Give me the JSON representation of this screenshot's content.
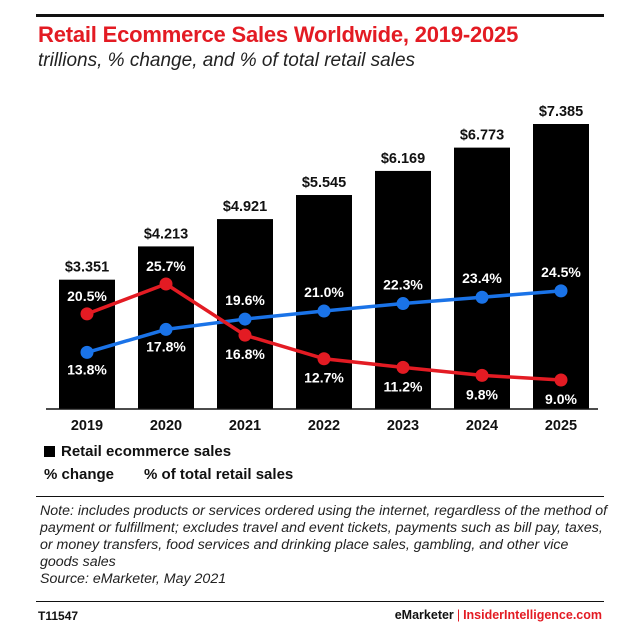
{
  "header": {
    "title": "Retail Ecommerce Sales Worldwide, 2019-2025",
    "subtitle": "trillions, % change, and % of total retail sales"
  },
  "chart_data": {
    "type": "bar",
    "categories": [
      "2019",
      "2020",
      "2021",
      "2022",
      "2023",
      "2024",
      "2025"
    ],
    "series": [
      {
        "name": "Retail ecommerce sales",
        "type": "bar",
        "values": [
          3.351,
          4.213,
          4.921,
          5.545,
          6.169,
          6.773,
          7.385
        ],
        "labels": [
          "$3.351",
          "$4.213",
          "$4.921",
          "$5.545",
          "$6.169",
          "$6.773",
          "$7.385"
        ],
        "color": "#000000"
      },
      {
        "name": "% change",
        "type": "line",
        "values": [
          20.5,
          25.7,
          16.8,
          12.7,
          11.2,
          9.8,
          9.0
        ],
        "labels": [
          "20.5%",
          "25.7%",
          "16.8%",
          "12.7%",
          "11.2%",
          "9.8%",
          "9.0%"
        ],
        "color": "#e31b23"
      },
      {
        "name": "% of total retail sales",
        "type": "line",
        "values": [
          13.8,
          17.8,
          19.6,
          21.0,
          22.3,
          23.4,
          24.5
        ],
        "labels": [
          "13.8%",
          "17.8%",
          "19.6%",
          "21.0%",
          "22.3%",
          "23.4%",
          "24.5%"
        ],
        "color": "#1a73e8"
      }
    ],
    "bar_ylim": [
      0,
      8.1
    ],
    "line_ylim": [
      5,
      40
    ],
    "grid": false,
    "legend_placement": "bottom-left"
  },
  "legend": {
    "bar_label": "Retail ecommerce sales",
    "red_label": "% change",
    "blue_label": "% of total retail sales"
  },
  "footer": {
    "note": "Note: includes products or services ordered using the internet, regardless of the method of payment or fulfillment; excludes travel and event tickets, payments such as bill pay, taxes, or money transfers, food services and drinking place sales, gambling, and other vice goods sales",
    "source": "Source: eMarketer, May 2021",
    "code": "T11547",
    "brand_left": "eMarketer",
    "brand_sep": "|",
    "brand_right": "InsiderIntelligence.com"
  },
  "colors": {
    "title": "#e31b23",
    "bar": "#000000",
    "red_line": "#e31b23",
    "blue_line": "#1a73e8"
  }
}
